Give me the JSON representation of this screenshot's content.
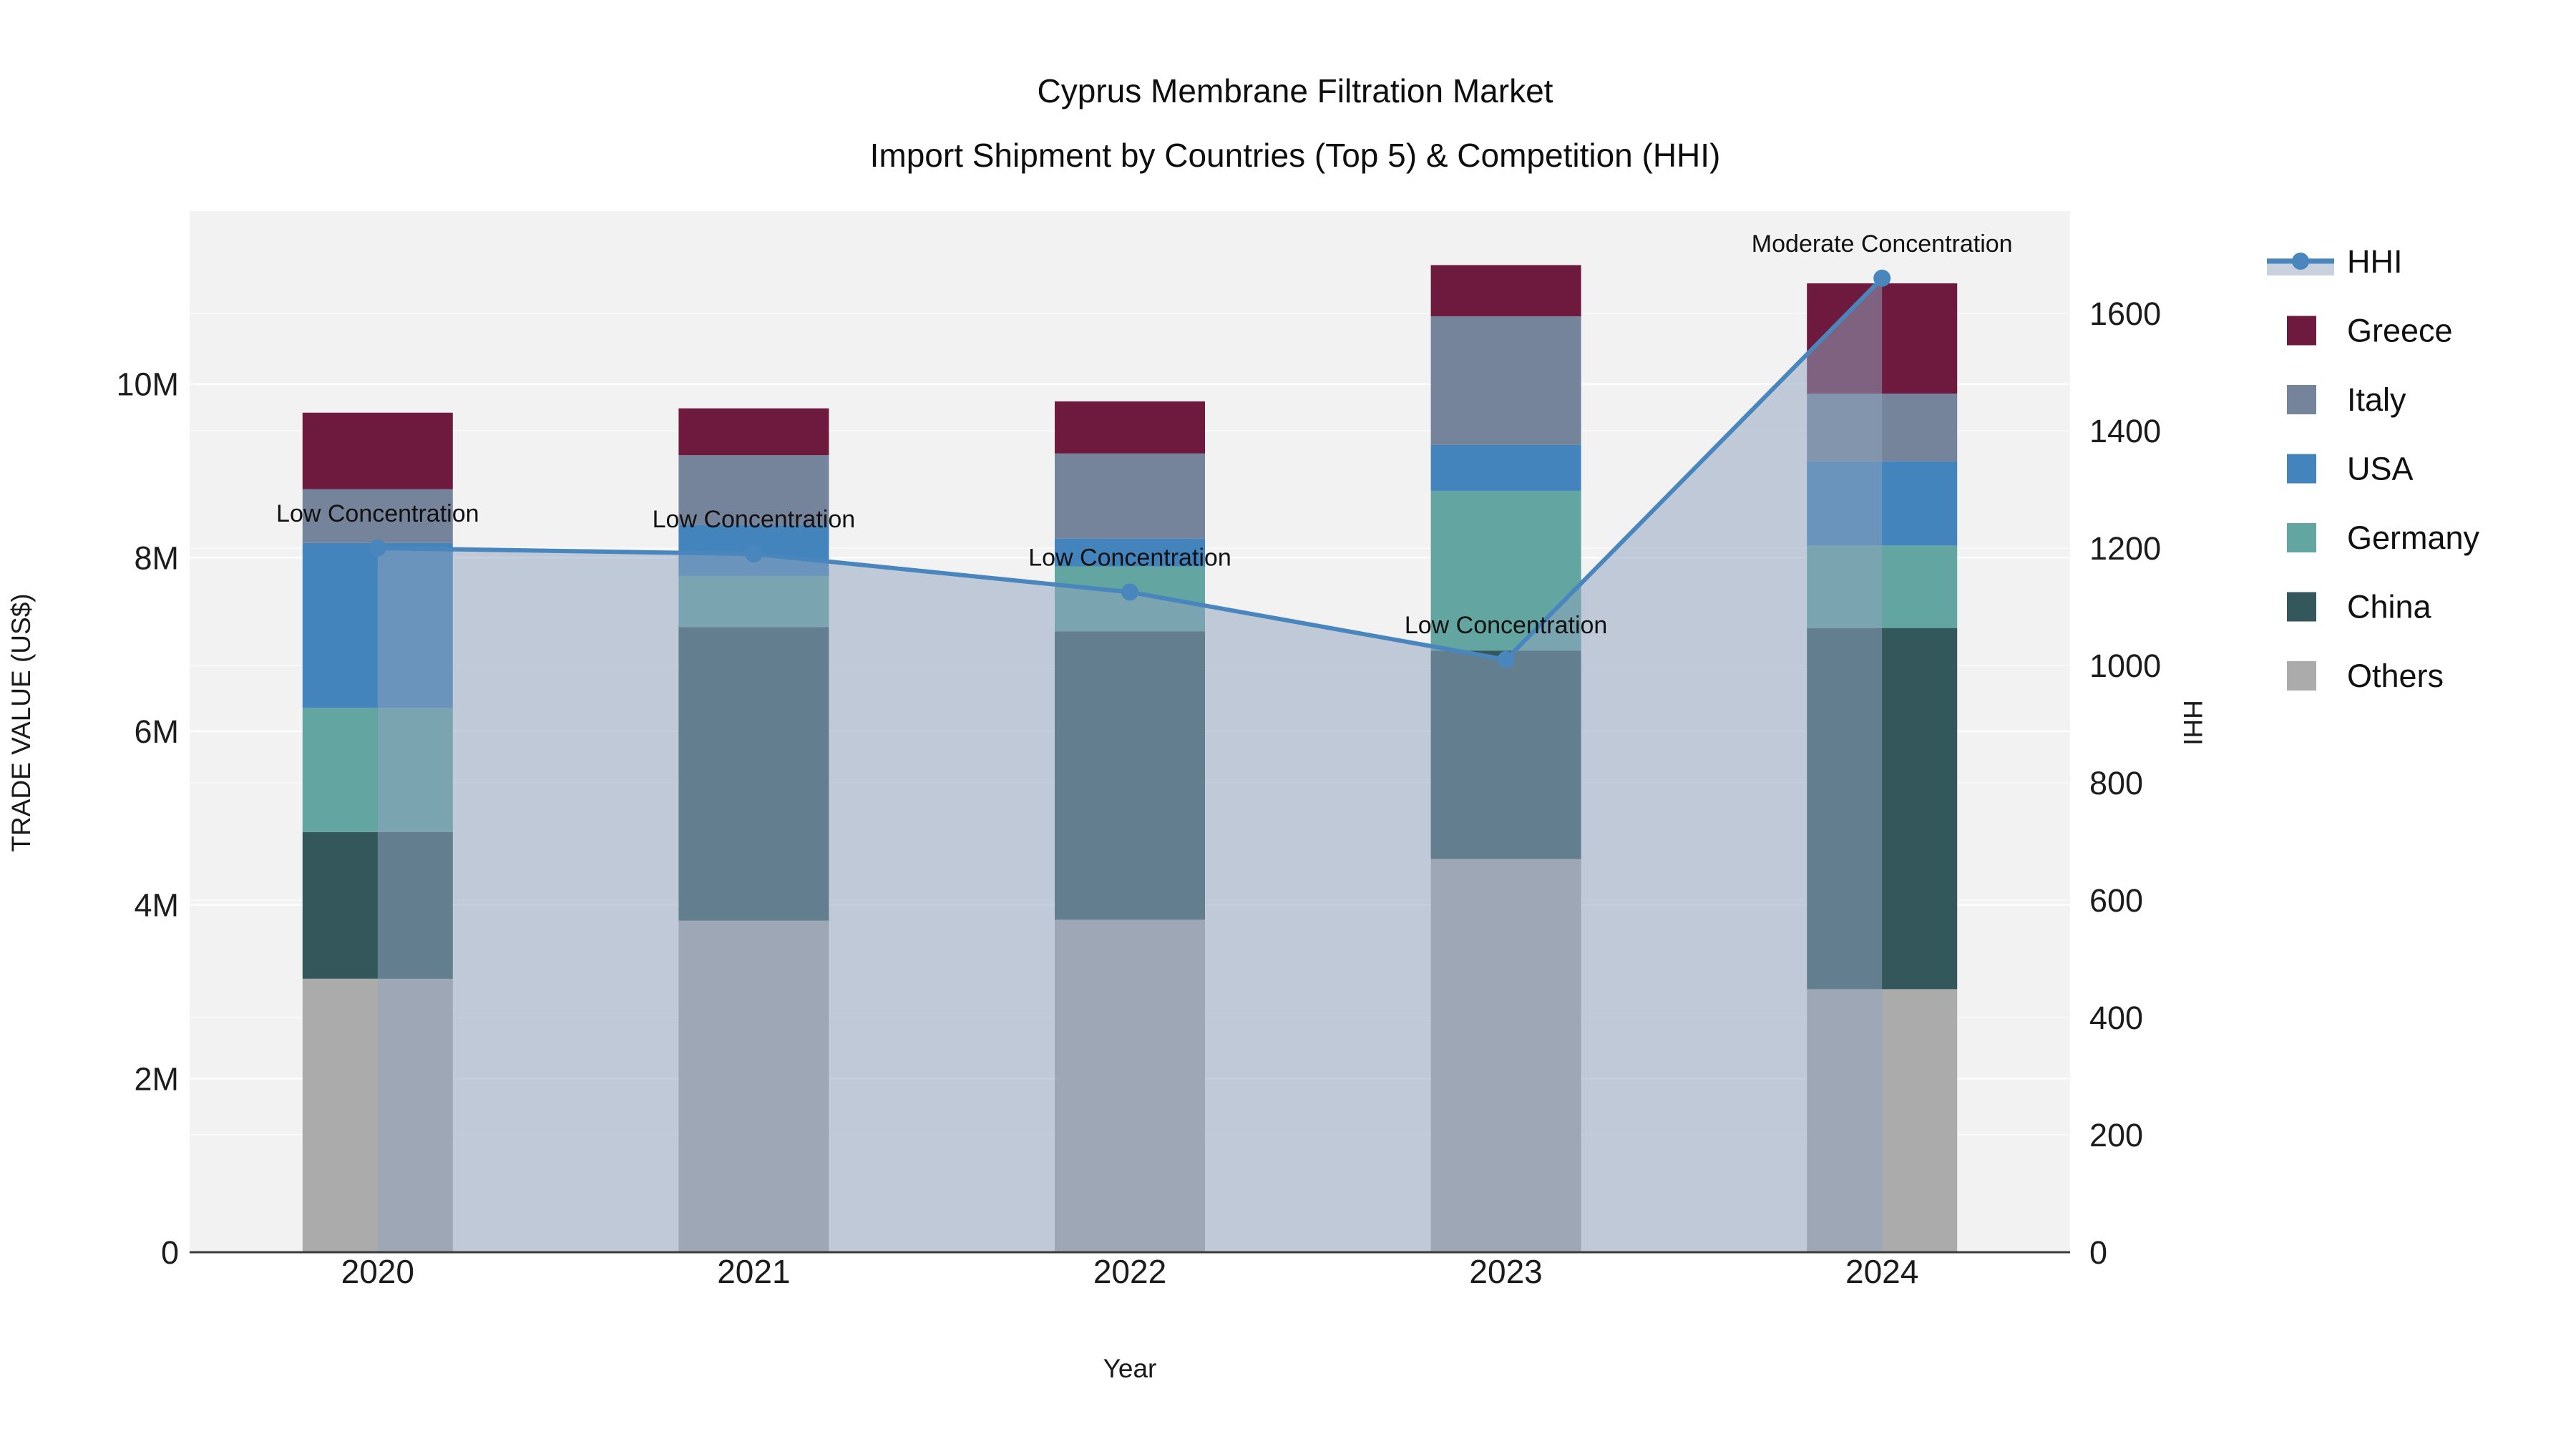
{
  "title": {
    "line1": "Cyprus Membrane Filtration Market",
    "line2": "Import Shipment by Countries (Top 5) & Competition (HHI)"
  },
  "axes": {
    "x": {
      "title": "Year"
    },
    "left": {
      "title": "TRADE VALUE (US$)",
      "tick_labels": [
        "0",
        "2M",
        "4M",
        "6M",
        "8M",
        "10M"
      ],
      "tick_values_millions": [
        0,
        2,
        4,
        6,
        8,
        10
      ]
    },
    "right": {
      "title": "HHI",
      "tick_labels": [
        "0",
        "200",
        "400",
        "600",
        "800",
        "1000",
        "1200",
        "1400",
        "1600"
      ],
      "tick_values": [
        0,
        200,
        400,
        600,
        800,
        1000,
        1200,
        1400,
        1600
      ]
    }
  },
  "legend": {
    "items": [
      {
        "label": "HHI",
        "type": "line",
        "color": "#4a86be"
      },
      {
        "label": "Greece",
        "type": "swatch",
        "color": "#6e1a3e"
      },
      {
        "label": "Italy",
        "type": "swatch",
        "color": "#76849b"
      },
      {
        "label": "USA",
        "type": "swatch",
        "color": "#4484bd"
      },
      {
        "label": "Germany",
        "type": "swatch",
        "color": "#62a5a1"
      },
      {
        "label": "China",
        "type": "swatch",
        "color": "#33575a"
      },
      {
        "label": "Others",
        "type": "swatch",
        "color": "#ababab"
      }
    ]
  },
  "annotations": [
    "Low Concentration",
    "Low Concentration",
    "Low Concentration",
    "Low Concentration",
    "Moderate Concentration"
  ],
  "colors": {
    "plot_background": "#f2f2f2",
    "gridline": "#ffffff",
    "axis_line": "#3a3a3a",
    "hhi_line": "#4a86be",
    "hhi_area_fill": "rgba(143,163,189,0.52)"
  },
  "chart_data": {
    "type": "bar",
    "subtype": "stacked bars with HHI line overlay (secondary axis) and area fill",
    "title": "Cyprus Membrane Filtration Market — Import Shipment by Countries (Top 5) & Competition (HHI)",
    "xlabel": "Year",
    "ylabel_left": "TRADE VALUE (US$)",
    "ylabel_right": "HHI",
    "unit": "millions of US$",
    "categories": [
      "2020",
      "2021",
      "2022",
      "2023",
      "2024"
    ],
    "series": [
      {
        "name": "Others",
        "color": "#ababab",
        "values": [
          3.15,
          3.82,
          3.83,
          4.53,
          3.03
        ]
      },
      {
        "name": "China",
        "color": "#33575a",
        "values": [
          1.69,
          3.38,
          3.32,
          2.4,
          4.16
        ]
      },
      {
        "name": "Germany",
        "color": "#62a5a1",
        "values": [
          1.43,
          0.59,
          0.75,
          1.84,
          0.95
        ]
      },
      {
        "name": "USA",
        "color": "#4484bd",
        "values": [
          1.9,
          0.59,
          0.32,
          0.53,
          0.97
        ]
      },
      {
        "name": "Italy",
        "color": "#76849b",
        "values": [
          0.62,
          0.8,
          0.98,
          1.48,
          0.78
        ]
      },
      {
        "name": "Greece",
        "color": "#6e1a3e",
        "values": [
          0.88,
          0.54,
          0.6,
          0.59,
          1.27
        ]
      }
    ],
    "bar_totals_millions": [
      9.67,
      9.72,
      9.8,
      11.37,
      11.16
    ],
    "line_series": {
      "name": "HHI",
      "color": "#4a86be",
      "axis": "right",
      "values": [
        1200,
        1190,
        1125,
        1010,
        1660
      ],
      "area_fill": true
    },
    "ylim_left_millions": [
      0,
      12
    ],
    "ylim_right": [
      0,
      1700
    ],
    "grid": true,
    "legend_position": "right"
  }
}
